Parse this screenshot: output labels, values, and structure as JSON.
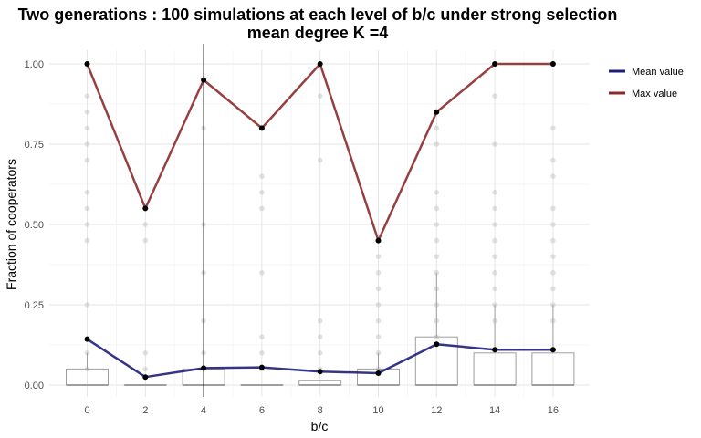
{
  "chart_data": {
    "type": "line",
    "title": "Two generations : 100 simulations at each level of b/c under strong selection",
    "subtitle": "mean degree K =4",
    "xlabel": "b/c",
    "ylabel": "Fraction of cooperators",
    "x": [
      0,
      2,
      4,
      6,
      8,
      10,
      12,
      14,
      16
    ],
    "x_ticks": [
      "0",
      "2",
      "4",
      "6",
      "8",
      "10",
      "12",
      "14",
      "16"
    ],
    "y_ticks": [
      "0.00",
      "0.25",
      "0.50",
      "0.75",
      "1.00"
    ],
    "ylim": [
      0,
      1
    ],
    "xlim": [
      -1,
      17.5
    ],
    "grid": true,
    "legend_position": "right",
    "vline_x": 4,
    "series": [
      {
        "name": "Mean value",
        "color": "#1f1f7a",
        "values": [
          0.143,
          0.025,
          0.053,
          0.055,
          0.042,
          0.037,
          0.127,
          0.11,
          0.11
        ]
      },
      {
        "name": "Max value",
        "color": "#8b2b2b",
        "values": [
          1.0,
          0.55,
          0.95,
          0.8,
          1.0,
          0.45,
          0.85,
          1.0,
          1.0
        ]
      }
    ],
    "boxplots": [
      {
        "x": 0,
        "q1": 0,
        "median": 0,
        "q3": 0.05,
        "whisker_high": 0.1
      },
      {
        "x": 2,
        "q1": 0,
        "median": 0,
        "q3": 0,
        "whisker_high": 0
      },
      {
        "x": 4,
        "q1": 0,
        "median": 0,
        "q3": 0.05,
        "whisker_high": 0.05
      },
      {
        "x": 6,
        "q1": 0,
        "median": 0,
        "q3": 0,
        "whisker_high": 0
      },
      {
        "x": 8,
        "q1": 0,
        "median": 0,
        "q3": 0.015,
        "whisker_high": 0.015
      },
      {
        "x": 10,
        "q1": 0,
        "median": 0,
        "q3": 0.05,
        "whisker_high": 0.1
      },
      {
        "x": 12,
        "q1": 0,
        "median": 0,
        "q3": 0.15,
        "whisker_high": 0.35
      },
      {
        "x": 14,
        "q1": 0,
        "median": 0,
        "q3": 0.1,
        "whisker_high": 0.25
      },
      {
        "x": 16,
        "q1": 0,
        "median": 0,
        "q3": 0.1,
        "whisker_high": 0.25
      }
    ],
    "points": [
      {
        "x": 0,
        "ys": [
          0.9,
          0.85,
          0.8,
          0.75,
          0.7,
          0.6,
          0.55,
          0.5,
          0.45,
          0.25,
          0.1,
          0.05
        ]
      },
      {
        "x": 2,
        "ys": [
          0.5,
          0.45,
          0.1,
          0.05
        ]
      },
      {
        "x": 4,
        "ys": [
          0.8,
          0.5,
          0.35,
          0.2,
          0.1
        ]
      },
      {
        "x": 6,
        "ys": [
          0.65,
          0.6,
          0.55,
          0.35,
          0.15,
          0.1,
          0.05
        ]
      },
      {
        "x": 8,
        "ys": [
          0.9,
          0.7,
          0.2,
          0.15,
          0.1,
          0.05
        ]
      },
      {
        "x": 10,
        "ys": [
          0.4,
          0.35,
          0.3,
          0.25,
          0.2,
          0.15,
          0.1,
          0.05
        ]
      },
      {
        "x": 12,
        "ys": [
          0.8,
          0.75,
          0.6,
          0.55,
          0.5,
          0.45,
          0.4,
          0.35,
          0.3,
          0.25,
          0.2,
          0.15
        ]
      },
      {
        "x": 14,
        "ys": [
          0.9,
          0.75,
          0.6,
          0.55,
          0.5,
          0.45,
          0.4,
          0.35,
          0.3,
          0.25,
          0.2
        ]
      },
      {
        "x": 16,
        "ys": [
          0.8,
          0.7,
          0.65,
          0.55,
          0.5,
          0.45,
          0.4,
          0.35,
          0.3,
          0.25,
          0.2
        ]
      }
    ]
  }
}
